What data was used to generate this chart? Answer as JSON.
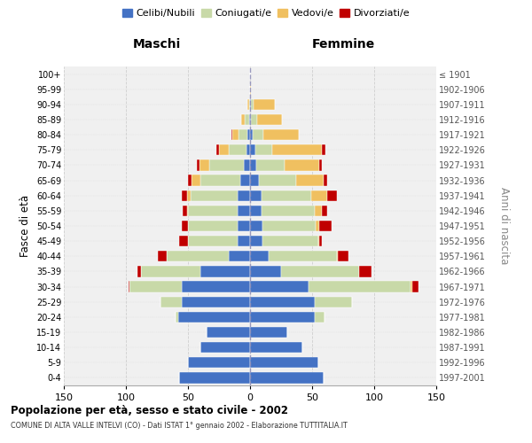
{
  "age_groups": [
    "0-4",
    "5-9",
    "10-14",
    "15-19",
    "20-24",
    "25-29",
    "30-34",
    "35-39",
    "40-44",
    "45-49",
    "50-54",
    "55-59",
    "60-64",
    "65-69",
    "70-74",
    "75-79",
    "80-84",
    "85-89",
    "90-94",
    "95-99",
    "100+"
  ],
  "birth_years": [
    "1997-2001",
    "1992-1996",
    "1987-1991",
    "1982-1986",
    "1977-1981",
    "1972-1976",
    "1967-1971",
    "1962-1966",
    "1957-1961",
    "1952-1956",
    "1947-1951",
    "1942-1946",
    "1937-1941",
    "1932-1936",
    "1927-1931",
    "1922-1926",
    "1917-1921",
    "1912-1916",
    "1907-1911",
    "1902-1906",
    "≤ 1901"
  ],
  "maschi": {
    "celibi": [
      57,
      50,
      40,
      35,
      58,
      55,
      55,
      40,
      17,
      10,
      10,
      10,
      10,
      8,
      5,
      3,
      2,
      1,
      0,
      0,
      0
    ],
    "coniugati": [
      0,
      0,
      0,
      0,
      2,
      17,
      42,
      48,
      50,
      40,
      40,
      40,
      38,
      32,
      28,
      14,
      7,
      3,
      1,
      0,
      0
    ],
    "vedovi": [
      0,
      0,
      0,
      0,
      0,
      0,
      0,
      0,
      0,
      0,
      0,
      1,
      3,
      7,
      8,
      8,
      5,
      3,
      1,
      0,
      0
    ],
    "divorziati": [
      0,
      0,
      0,
      0,
      0,
      0,
      1,
      3,
      7,
      7,
      5,
      3,
      4,
      3,
      2,
      2,
      1,
      0,
      0,
      0,
      0
    ]
  },
  "femmine": {
    "nubili": [
      59,
      55,
      42,
      30,
      52,
      52,
      47,
      25,
      15,
      10,
      10,
      9,
      9,
      7,
      5,
      4,
      2,
      1,
      1,
      0,
      0
    ],
    "coniugate": [
      0,
      0,
      0,
      0,
      8,
      30,
      82,
      63,
      55,
      45,
      43,
      43,
      40,
      30,
      23,
      14,
      9,
      5,
      2,
      0,
      0
    ],
    "vedove": [
      0,
      0,
      0,
      0,
      0,
      0,
      2,
      0,
      1,
      1,
      3,
      6,
      13,
      22,
      28,
      40,
      28,
      20,
      17,
      1,
      0
    ],
    "divorziate": [
      0,
      0,
      0,
      0,
      0,
      0,
      5,
      10,
      8,
      2,
      10,
      4,
      8,
      3,
      2,
      3,
      0,
      0,
      0,
      0,
      0
    ]
  },
  "colors": {
    "celibi_nubili": "#4472c4",
    "coniugati": "#c8d9a8",
    "vedovi": "#f0c060",
    "divorziati": "#c00000"
  },
  "xlim": 150,
  "title": "Popolazione per età, sesso e stato civile - 2002",
  "subtitle": "COMUNE DI ALTA VALLE INTELVI (CO) - Dati ISTAT 1° gennaio 2002 - Elaborazione TUTTITALIA.IT",
  "xlabel_left": "Maschi",
  "xlabel_right": "Femmine",
  "ylabel_left": "Fasce di età",
  "ylabel_right": "Anni di nascita",
  "bg_color": "#f0f0f0",
  "grid_color": "#cccccc"
}
